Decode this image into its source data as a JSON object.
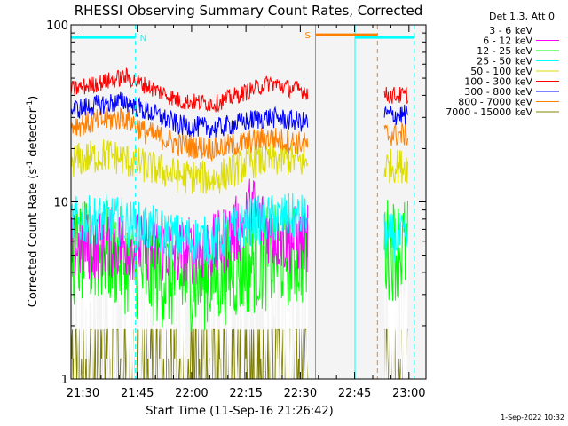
{
  "chart_data": {
    "type": "line",
    "title": "RHESSI Observing Summary Count Rates, Corrected",
    "xlabel": "Start Time (11-Sep-16 21:26:42)",
    "ylabel": "Corrected Count Rate (s⁻¹ detector⁻¹)",
    "ylabel_parts": {
      "main": "Corrected Count Rate (s",
      "sup1": "-1",
      "mid": " detector",
      "sup2": "-1",
      "end": ")"
    },
    "y_scale": "log",
    "ylim": [
      1,
      100
    ],
    "y_ticks": [
      {
        "value": 1,
        "label": "1"
      },
      {
        "value": 10,
        "label": "10"
      },
      {
        "value": 100,
        "label": "100"
      }
    ],
    "x_unit": "minutes after 21:26:42",
    "xlim": [
      0,
      98
    ],
    "x_ticks": [
      {
        "value": 3.3,
        "label": "21:30"
      },
      {
        "value": 18.3,
        "label": "21:45"
      },
      {
        "value": 33.3,
        "label": "22:00"
      },
      {
        "value": 48.3,
        "label": "22:15"
      },
      {
        "value": 63.3,
        "label": "22:30"
      },
      {
        "value": 78.3,
        "label": "22:45"
      },
      {
        "value": 93.3,
        "label": "23:00"
      }
    ],
    "legend_title": "Det 1,3, Att 0",
    "legend_placement": "right",
    "series": [
      {
        "name": "3 - 6 keV",
        "color": "#ffffff",
        "x": [
          0,
          10,
          20,
          30,
          40,
          50,
          60,
          65.5
        ],
        "values": [
          5.2,
          5.5,
          5.3,
          5.0,
          4.8,
          5.2,
          5.5,
          5.4
        ]
      },
      {
        "name": "6 - 12 keV",
        "color": "#ff00ff",
        "x": [
          0,
          10,
          20,
          30,
          40,
          48,
          50,
          52,
          56,
          60,
          65.5
        ],
        "values": [
          5.5,
          5.8,
          5.6,
          5.2,
          5.5,
          7.5,
          9.5,
          8.0,
          6.5,
          6.0,
          6.2
        ]
      },
      {
        "name": "12 - 25 keV",
        "color": "#00ff00",
        "x": [
          0,
          10,
          20,
          30,
          40,
          50,
          60,
          65.5
        ],
        "values": [
          5.0,
          5.2,
          4.0,
          3.6,
          3.8,
          4.6,
          5.0,
          5.1
        ]
      },
      {
        "name": "25 - 50 keV",
        "color": "#00ffff",
        "x": [
          0,
          10,
          20,
          30,
          40,
          50,
          60,
          65.5
        ],
        "values": [
          7.8,
          8.0,
          7.2,
          6.2,
          6.0,
          7.8,
          8.2,
          8.0
        ]
      },
      {
        "name": "50 - 100 keV",
        "color": "#dddd00",
        "x": [
          0,
          10,
          20,
          30,
          40,
          50,
          60,
          65.5
        ],
        "values": [
          17,
          18.5,
          16,
          14,
          13.5,
          17,
          17.5,
          16.5
        ]
      },
      {
        "name": "100 - 300 keV",
        "color": "#ff0000",
        "x": [
          0,
          10,
          15,
          20,
          30,
          40,
          50,
          55,
          60,
          65.5
        ],
        "values": [
          43,
          48,
          51,
          46,
          37,
          36,
          43,
          47,
          44,
          42
        ]
      },
      {
        "name": "300 - 800 keV",
        "color": "#0000ff",
        "x": [
          0,
          10,
          15,
          20,
          30,
          40,
          50,
          55,
          60,
          65.5
        ],
        "values": [
          33,
          36,
          37,
          33,
          27,
          26,
          29,
          30,
          29,
          28
        ]
      },
      {
        "name": "800 - 7000 keV",
        "color": "#ff8000",
        "x": [
          0,
          10,
          15,
          20,
          30,
          40,
          50,
          55,
          60,
          65.5
        ],
        "values": [
          27,
          29,
          30,
          25,
          21,
          20,
          22,
          23,
          22,
          21
        ]
      },
      {
        "name": "7000 - 15000 keV",
        "color": "#808000",
        "x": [
          0,
          10,
          20,
          30,
          40,
          50,
          60,
          65.5
        ],
        "values": [
          1.6,
          1.6,
          1.6,
          1.6,
          1.6,
          1.6,
          1.6,
          1.6
        ]
      }
    ],
    "after_gap_segment": {
      "x_range": [
        86.5,
        93
      ],
      "values": {
        "100 - 300 keV": 40,
        "300 - 800 keV": 31,
        "800 - 7000 keV": 24,
        "50 - 100 keV": 16,
        "25 - 50 keV": 6.3,
        "12 - 25 keV": 5.5,
        "3 - 6 keV": 4.5,
        "7000 - 15000 keV": 1.6
      }
    },
    "annotations": [
      {
        "label": "N",
        "type": "night",
        "color": "#00ffff",
        "x_range": [
          0,
          17.8
        ],
        "level": 85
      },
      {
        "label": "",
        "type": "night",
        "color": "#00ffff",
        "x_range": [
          78.4,
          94.8
        ],
        "level": 85
      },
      {
        "label": "S",
        "type": "saa",
        "color": "#ff8000",
        "x_range": [
          67.5,
          84.6
        ],
        "level": 88
      }
    ],
    "vertical_markers": [
      {
        "x": 17.8,
        "color": "#00ffff",
        "style": "dashed"
      },
      {
        "x": 67.5,
        "color": "#ff8000",
        "style": "solid"
      },
      {
        "x": 78.4,
        "color": "#00ffff",
        "style": "solid"
      },
      {
        "x": 84.6,
        "color": "#ff8000",
        "style": "dashed"
      },
      {
        "x": 94.8,
        "color": "#00ffff",
        "style": "dashed"
      }
    ],
    "data_gap": [
      65.5,
      86.5
    ],
    "footer": "1-Sep-2022 10:32"
  }
}
